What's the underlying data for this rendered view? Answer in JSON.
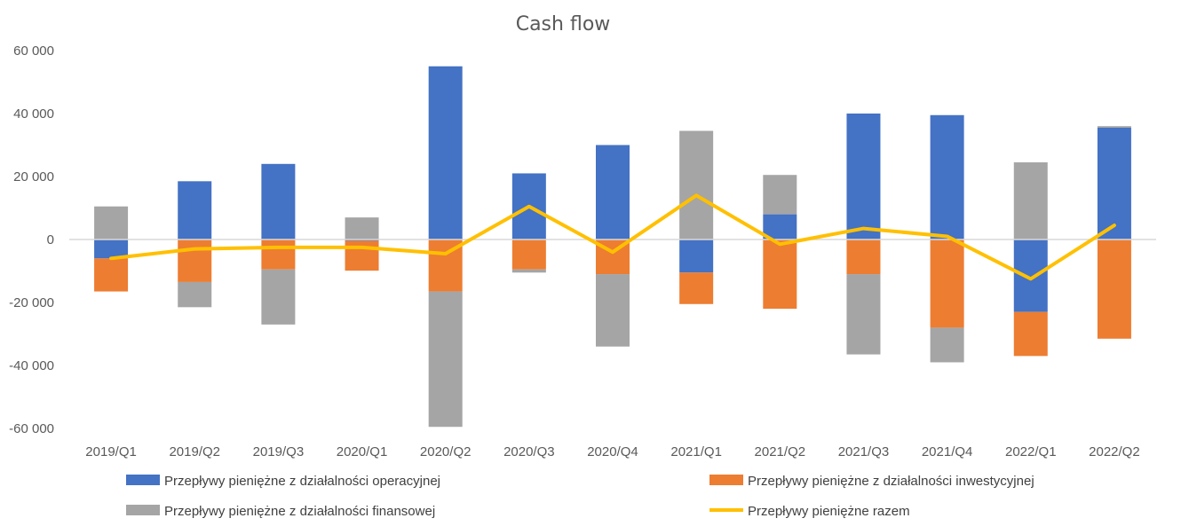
{
  "chart_data": {
    "type": "bar",
    "title": "Cash flow",
    "categories": [
      "2019/Q1",
      "2019/Q2",
      "2019/Q3",
      "2020/Q1",
      "2020/Q2",
      "2020/Q3",
      "2020/Q4",
      "2021/Q1",
      "2021/Q2",
      "2021/Q3",
      "2021/Q4",
      "2022/Q1",
      "2022/Q2"
    ],
    "yticks": [
      "60 000",
      "40 000",
      "20 000",
      "0",
      "-20 000",
      "-40 000",
      "-60 000"
    ],
    "ylim": [
      -60000,
      60000
    ],
    "grid": false,
    "stacked": true,
    "legend_position": "bottom",
    "series": [
      {
        "name": "Przepływy pieniężne z działalności operacyjnej",
        "kind": "bar",
        "color": "#4472C4",
        "values": [
          -6000,
          18500,
          24000,
          -400,
          55000,
          21000,
          30000,
          -10500,
          8000,
          40000,
          39500,
          -23000,
          35500
        ]
      },
      {
        "name": "Przepływy pieniężne z działalności inwestycyjnej",
        "kind": "bar",
        "color": "#ED7D31",
        "values": [
          -10500,
          -13500,
          -9500,
          -9500,
          -16500,
          -9500,
          -11000,
          -10000,
          -22000,
          -11000,
          -28000,
          -14000,
          -31500
        ]
      },
      {
        "name": "Przepływy pieniężne z działalności finansowej",
        "kind": "bar",
        "color": "#A5A5A5",
        "values": [
          10500,
          -8000,
          -17500,
          7000,
          -43000,
          -1000,
          -23000,
          34500,
          12500,
          -25500,
          -11000,
          24500,
          500
        ]
      },
      {
        "name": "Przepływy pieniężne razem",
        "kind": "line",
        "color": "#FFC000",
        "values": [
          -6000,
          -3000,
          -2500,
          -2500,
          -4500,
          10500,
          -4000,
          14000,
          -1500,
          3500,
          1000,
          -12500,
          4500
        ]
      }
    ]
  }
}
